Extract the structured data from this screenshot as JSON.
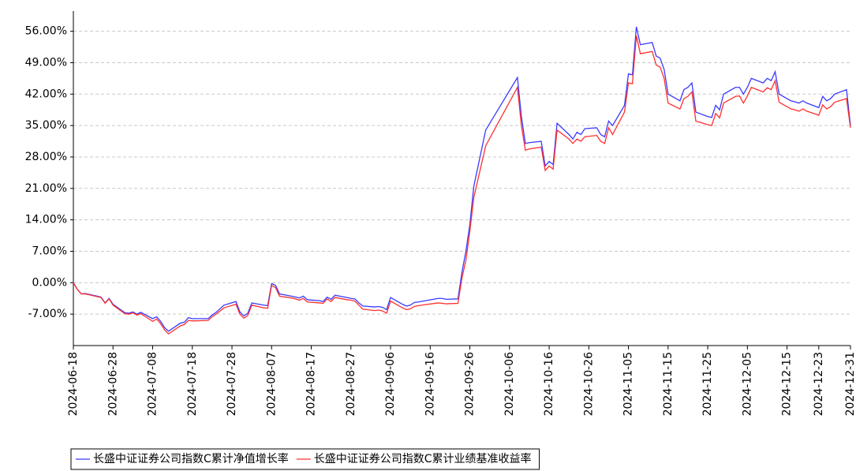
{
  "chart_data": {
    "type": "line",
    "x": [
      "2024-06-18",
      "2024-06-19",
      "2024-06-20",
      "2024-06-21",
      "2024-06-24",
      "2024-06-25",
      "2024-06-26",
      "2024-06-27",
      "2024-06-28",
      "2024-07-01",
      "2024-07-02",
      "2024-07-03",
      "2024-07-04",
      "2024-07-05",
      "2024-07-08",
      "2024-07-09",
      "2024-07-10",
      "2024-07-11",
      "2024-07-12",
      "2024-07-15",
      "2024-07-16",
      "2024-07-17",
      "2024-07-18",
      "2024-07-19",
      "2024-07-22",
      "2024-07-23",
      "2024-07-24",
      "2024-07-25",
      "2024-07-26",
      "2024-07-29",
      "2024-07-30",
      "2024-07-31",
      "2024-08-01",
      "2024-08-02",
      "2024-08-05",
      "2024-08-06",
      "2024-08-07",
      "2024-08-08",
      "2024-08-09",
      "2024-08-12",
      "2024-08-13",
      "2024-08-14",
      "2024-08-15",
      "2024-08-16",
      "2024-08-19",
      "2024-08-20",
      "2024-08-21",
      "2024-08-22",
      "2024-08-23",
      "2024-08-26",
      "2024-08-27",
      "2024-08-28",
      "2024-08-29",
      "2024-08-30",
      "2024-09-02",
      "2024-09-03",
      "2024-09-04",
      "2024-09-05",
      "2024-09-06",
      "2024-09-09",
      "2024-09-10",
      "2024-09-11",
      "2024-09-12",
      "2024-09-13",
      "2024-09-18",
      "2024-09-19",
      "2024-09-20",
      "2024-09-23",
      "2024-09-24",
      "2024-09-25",
      "2024-09-26",
      "2024-09-27",
      "2024-09-30",
      "2024-10-08",
      "2024-10-09",
      "2024-10-10",
      "2024-10-11",
      "2024-10-14",
      "2024-10-15",
      "2024-10-16",
      "2024-10-17",
      "2024-10-18",
      "2024-10-21",
      "2024-10-22",
      "2024-10-23",
      "2024-10-24",
      "2024-10-25",
      "2024-10-28",
      "2024-10-29",
      "2024-10-30",
      "2024-10-31",
      "2024-11-01",
      "2024-11-04",
      "2024-11-05",
      "2024-11-06",
      "2024-11-07",
      "2024-11-08",
      "2024-11-11",
      "2024-11-12",
      "2024-11-13",
      "2024-11-14",
      "2024-11-15",
      "2024-11-18",
      "2024-11-19",
      "2024-11-20",
      "2024-11-21",
      "2024-11-22",
      "2024-11-25",
      "2024-11-26",
      "2024-11-27",
      "2024-11-28",
      "2024-11-29",
      "2024-12-02",
      "2024-12-03",
      "2024-12-04",
      "2024-12-05",
      "2024-12-06",
      "2024-12-09",
      "2024-12-10",
      "2024-12-11",
      "2024-12-12",
      "2024-12-13",
      "2024-12-16",
      "2024-12-17",
      "2024-12-18",
      "2024-12-19",
      "2024-12-20",
      "2024-12-23",
      "2024-12-24",
      "2024-12-25",
      "2024-12-26",
      "2024-12-27",
      "2024-12-30",
      "2024-12-31"
    ],
    "series": [
      {
        "name": "长盛中证证券公司指数C累计净值增长率",
        "color": "#3a3aff",
        "values": [
          0,
          -1.5,
          -2.5,
          -2.4,
          -3,
          -3.2,
          -4.5,
          -3.5,
          -4.8,
          -6.7,
          -6.8,
          -6.5,
          -7,
          -6.6,
          -8,
          -7.6,
          -8.6,
          -10,
          -10.8,
          -9,
          -8.8,
          -7.8,
          -8,
          -8,
          -8,
          -7.2,
          -6.6,
          -5.8,
          -5,
          -4.2,
          -6.5,
          -7.4,
          -6.8,
          -4.5,
          -5,
          -5.1,
          -0.2,
          -0.6,
          -2.5,
          -3,
          -3.2,
          -3.4,
          -3,
          -3.8,
          -4,
          -4.2,
          -3.2,
          -3.7,
          -2.8,
          -3.3,
          -3.5,
          -3.6,
          -4.5,
          -5.2,
          -5.4,
          -5.3,
          -5.5,
          -6,
          -3.3,
          -4.8,
          -5.2,
          -5,
          -4.4,
          -4.3,
          -3.5,
          -3.5,
          -3.7,
          -3.6,
          2.3,
          7,
          13,
          21.5,
          34,
          45.7,
          37,
          31,
          31.2,
          31.5,
          26,
          27,
          26.3,
          35.5,
          33,
          32,
          33.5,
          33,
          34.3,
          34.5,
          33,
          32.5,
          36,
          35,
          39.5,
          46.5,
          46.3,
          57,
          53,
          53.5,
          50.5,
          50,
          47.5,
          42,
          40.5,
          43,
          43.5,
          44.5,
          38,
          37,
          36.8,
          39.5,
          38.5,
          42,
          43.5,
          43.5,
          42,
          43.5,
          45.5,
          44.5,
          45.5,
          45,
          47,
          42,
          40.5,
          40.3,
          40,
          40.5,
          40,
          39,
          41.5,
          40.5,
          41,
          42,
          43,
          35
        ]
      },
      {
        "name": "长盛中证证券公司指数C累计业绩基准收益率",
        "color": "#ff3030",
        "values": [
          0,
          -1.5,
          -2.5,
          -2.5,
          -3.1,
          -3.3,
          -4.6,
          -3.6,
          -5,
          -6.9,
          -7,
          -6.7,
          -7.2,
          -6.9,
          -8.6,
          -8.1,
          -9.1,
          -10.5,
          -11.4,
          -9.6,
          -9.3,
          -8.4,
          -8.5,
          -8.5,
          -8.4,
          -7.6,
          -7,
          -6.3,
          -5.6,
          -4.8,
          -7,
          -7.9,
          -7.3,
          -5,
          -5.6,
          -5.7,
          -0.6,
          -1.1,
          -3,
          -3.4,
          -3.6,
          -3.9,
          -3.5,
          -4.3,
          -4.5,
          -4.6,
          -3.6,
          -4.2,
          -3.3,
          -3.8,
          -3.9,
          -4.1,
          -5,
          -5.9,
          -6.2,
          -6.1,
          -6.3,
          -6.8,
          -4.1,
          -5.6,
          -6,
          -5.8,
          -5.3,
          -5.1,
          -4.5,
          -4.6,
          -4.7,
          -4.6,
          1,
          5,
          11.5,
          19,
          30.5,
          43.5,
          35,
          29.5,
          29.8,
          30.2,
          25,
          26,
          25.3,
          34,
          32,
          31,
          32,
          31.5,
          32.5,
          32.8,
          31.5,
          31,
          34.5,
          33,
          38,
          44.5,
          44.3,
          55,
          51,
          51.5,
          48.5,
          48,
          45.5,
          40,
          38.7,
          41,
          41.5,
          42.5,
          36,
          35.2,
          35,
          37.7,
          36.7,
          40,
          41.5,
          41.6,
          40,
          41.6,
          43.5,
          42.5,
          43.4,
          43,
          45,
          40.2,
          38.7,
          38.5,
          38.2,
          38.7,
          38.2,
          37.3,
          39.6,
          38.7,
          39.2,
          40.2,
          41,
          34.5
        ]
      }
    ],
    "xlim": [
      "2024-06-18",
      "2024-12-31"
    ],
    "xticks": [
      "2024-06-18",
      "2024-06-28",
      "2024-07-08",
      "2024-07-18",
      "2024-07-28",
      "2024-08-07",
      "2024-08-17",
      "2024-08-27",
      "2024-09-06",
      "2024-09-16",
      "2024-09-26",
      "2024-10-06",
      "2024-10-16",
      "2024-10-26",
      "2024-11-05",
      "2024-11-15",
      "2024-11-25",
      "2024-12-05",
      "2024-12-15",
      "2024-12-23",
      "2024-12-31"
    ],
    "ylim": [
      -14,
      60.5
    ],
    "yticks": [
      {
        "value": -7,
        "label": "-7.00%"
      },
      {
        "value": 0,
        "label": "0.00%"
      },
      {
        "value": 7,
        "label": "7.00%"
      },
      {
        "value": 14,
        "label": "14.00%"
      },
      {
        "value": 21,
        "label": "21.00%"
      },
      {
        "value": 28,
        "label": "28.00%"
      },
      {
        "value": 35,
        "label": "35.00%"
      },
      {
        "value": 42,
        "label": "42.00%"
      },
      {
        "value": 49,
        "label": "49.00%"
      },
      {
        "value": 56,
        "label": "56.00%"
      }
    ],
    "grid": true,
    "legend": "bottom"
  }
}
